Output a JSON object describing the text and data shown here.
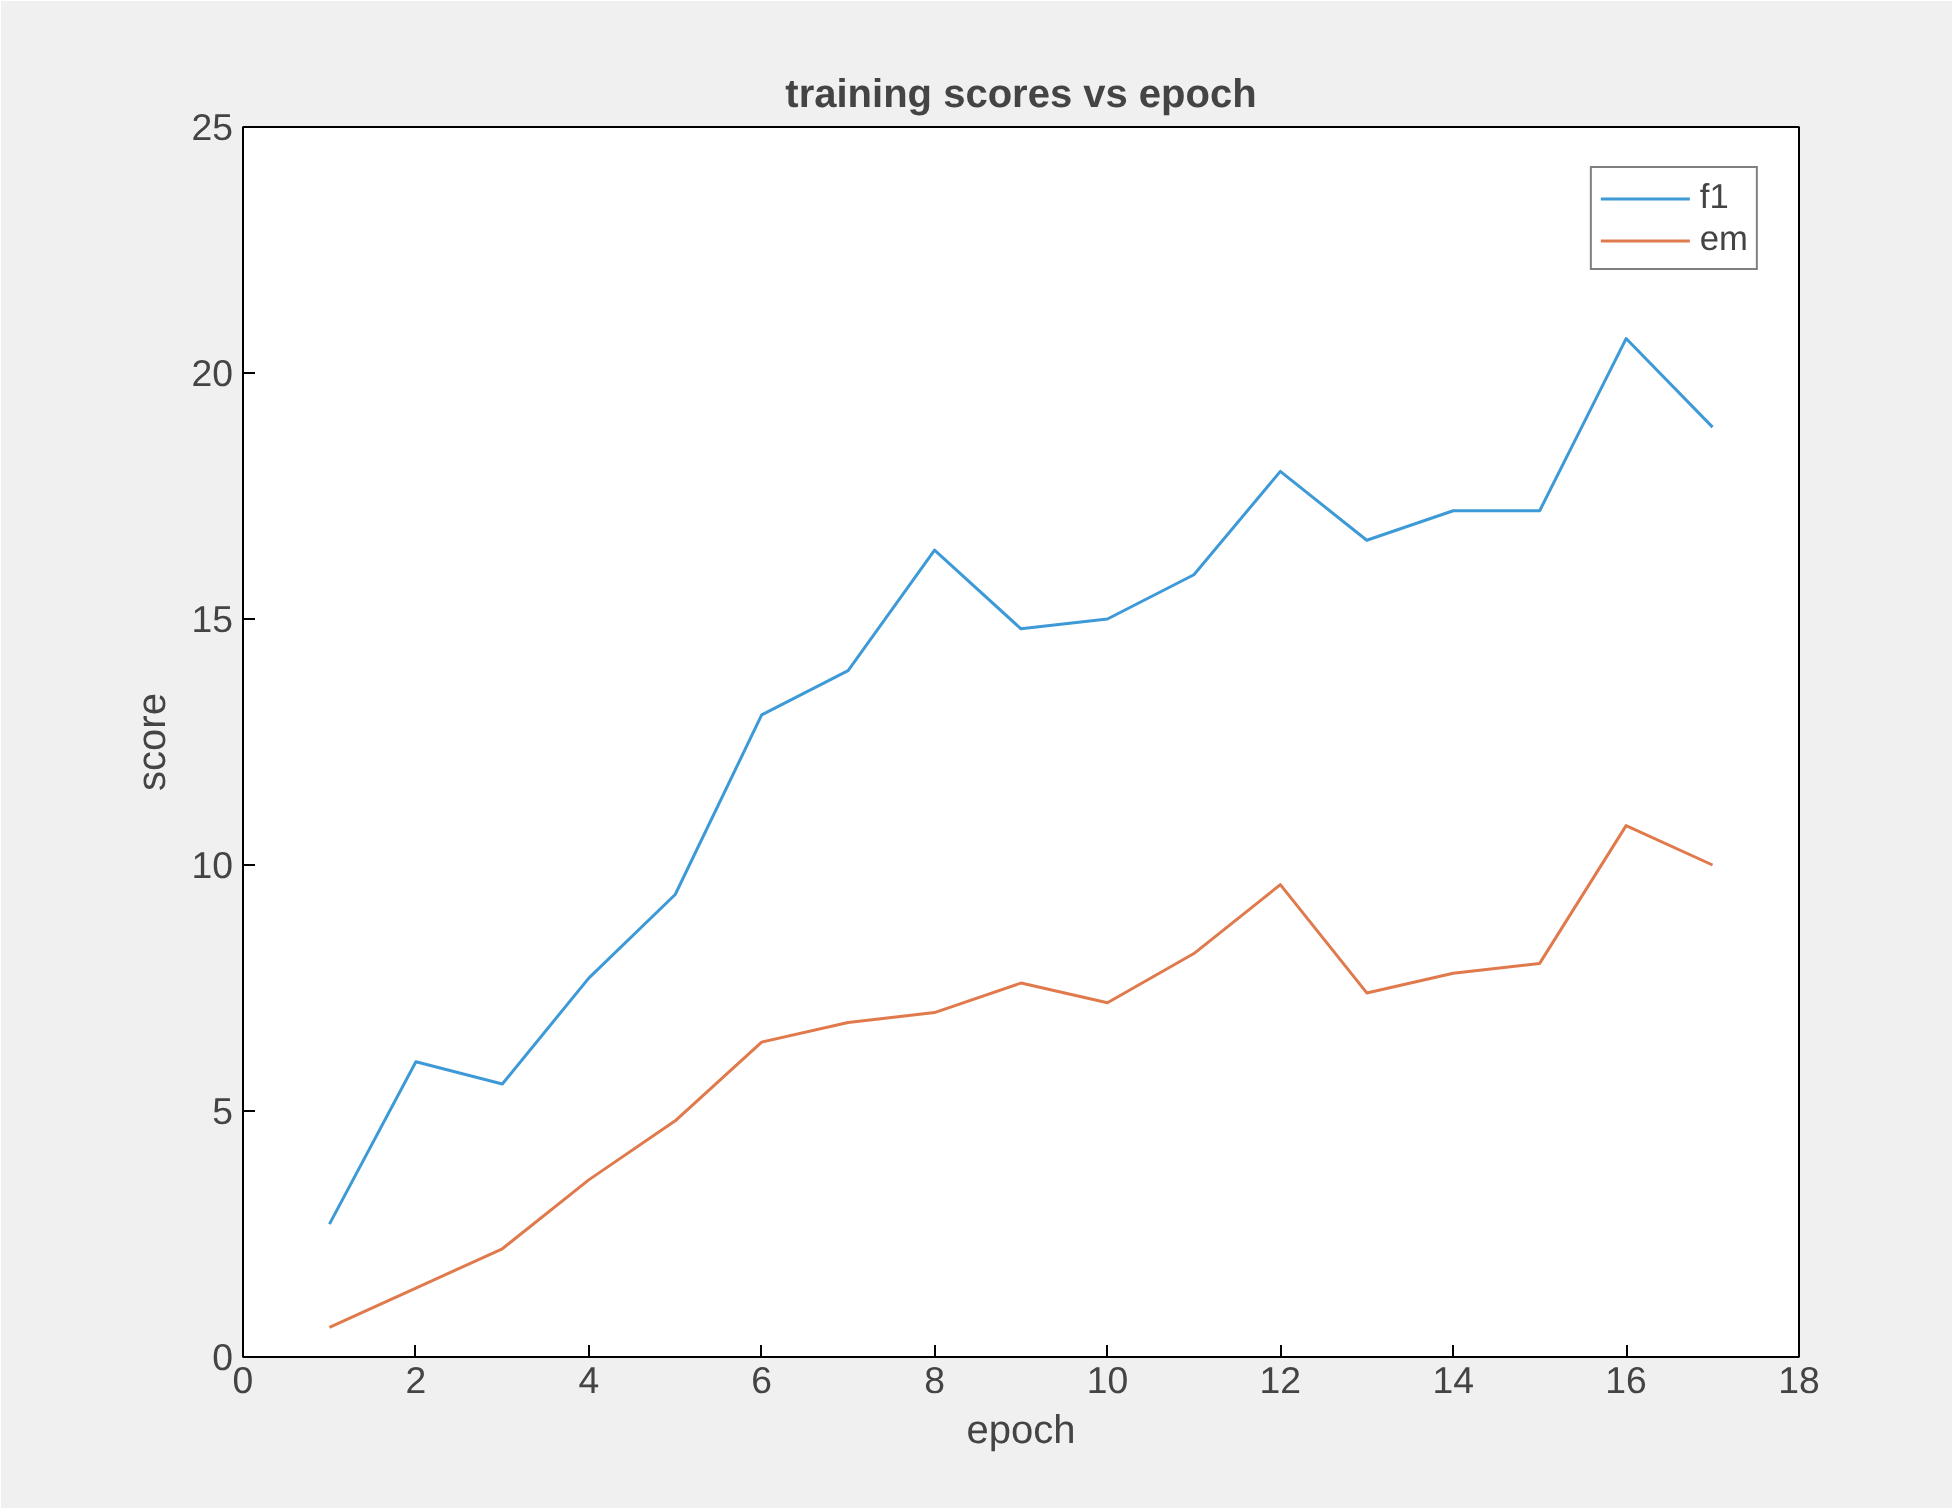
{
  "chart_data": {
    "type": "line",
    "title": "training scores vs epoch",
    "xlabel": "epoch",
    "ylabel": "score",
    "x": [
      1,
      2,
      3,
      4,
      5,
      6,
      7,
      8,
      9,
      10,
      11,
      12,
      13,
      14,
      15,
      16,
      17
    ],
    "series": [
      {
        "name": "f1",
        "color": "#3d9ad6",
        "values": [
          2.7,
          6.0,
          5.55,
          7.7,
          9.4,
          13.05,
          13.95,
          16.4,
          14.8,
          15.0,
          15.9,
          18.0,
          16.6,
          17.2,
          17.2,
          20.7,
          18.9
        ]
      },
      {
        "name": "em",
        "color": "#e07a4c",
        "values": [
          0.6,
          1.4,
          2.2,
          3.6,
          4.8,
          6.4,
          6.8,
          7.0,
          7.6,
          7.2,
          8.2,
          9.6,
          7.4,
          7.8,
          8.0,
          10.8,
          10.0
        ]
      }
    ],
    "xlim": [
      0,
      18
    ],
    "xticks": [
      0,
      2,
      4,
      6,
      8,
      10,
      12,
      14,
      16,
      18
    ],
    "ylim": [
      0,
      25
    ],
    "yticks": [
      0,
      5,
      10,
      15,
      20,
      25
    ],
    "grid": false,
    "legend": "top right",
    "marker": "none",
    "line_style": "solid"
  }
}
